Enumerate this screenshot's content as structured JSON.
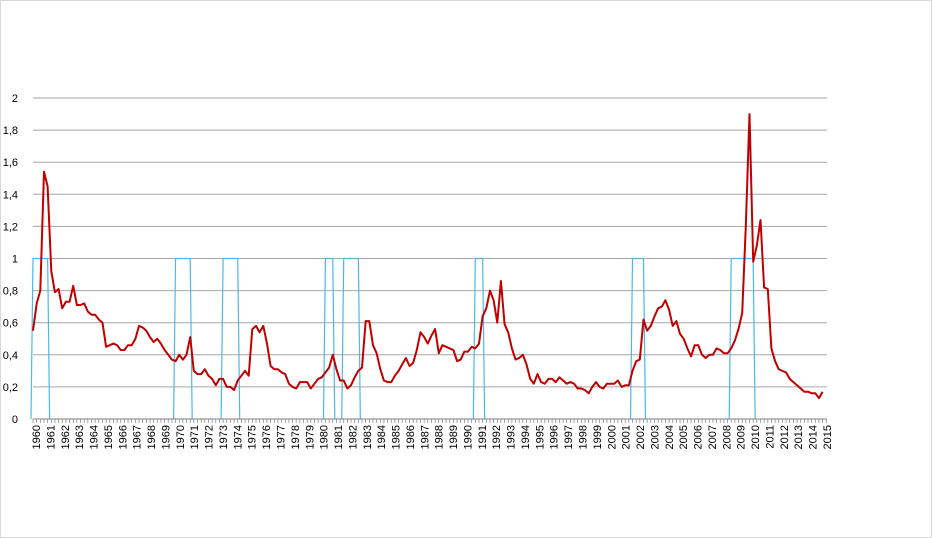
{
  "chart_data": {
    "type": "line",
    "title": "",
    "xlabel": "",
    "ylabel": "",
    "ylim": [
      0,
      2
    ],
    "y_ticks": [
      "0",
      "0,2",
      "0,4",
      "0,6",
      "0,8",
      "1",
      "1,2",
      "1,4",
      "1,6",
      "1,8",
      "2"
    ],
    "x_tick_labels": [
      "1960",
      "1961",
      "1962",
      "1963",
      "1964",
      "1965",
      "1966",
      "1967",
      "1968",
      "1969",
      "1970",
      "1971",
      "1972",
      "1973",
      "1974",
      "1975",
      "1976",
      "1977",
      "1978",
      "1979",
      "1980",
      "1981",
      "1982",
      "1983",
      "1984",
      "1985",
      "1986",
      "1987",
      "1988",
      "1989",
      "1990",
      "1991",
      "1992",
      "1993",
      "1994",
      "1995",
      "1996",
      "1997",
      "1998",
      "1999",
      "2000",
      "2001",
      "2002",
      "2003",
      "2004",
      "2005",
      "2006",
      "2007",
      "2008",
      "2009",
      "2010",
      "2011",
      "2012",
      "2013",
      "2014",
      "2015"
    ],
    "grid": true,
    "colors": {
      "main_series": "#c00000",
      "recession_series": "#4db8e8",
      "grid": "#a6a6a6",
      "axis": "#7f7f7f"
    },
    "series": [
      {
        "kind": "line",
        "color": "#c00000",
        "points": [
          [
            1960.0,
            0.55
          ],
          [
            1960.25,
            0.72
          ],
          [
            1960.5,
            0.8
          ],
          [
            1960.75,
            1.54
          ],
          [
            1961.0,
            1.45
          ],
          [
            1961.25,
            0.92
          ],
          [
            1961.5,
            0.79
          ],
          [
            1961.75,
            0.81
          ],
          [
            1962.0,
            0.69
          ],
          [
            1962.25,
            0.73
          ],
          [
            1962.5,
            0.73
          ],
          [
            1962.75,
            0.83
          ],
          [
            1963.0,
            0.71
          ],
          [
            1963.25,
            0.71
          ],
          [
            1963.5,
            0.72
          ],
          [
            1963.75,
            0.67
          ],
          [
            1964.0,
            0.65
          ],
          [
            1964.25,
            0.65
          ],
          [
            1964.5,
            0.62
          ],
          [
            1964.75,
            0.6
          ],
          [
            1965.0,
            0.45
          ],
          [
            1965.25,
            0.46
          ],
          [
            1965.5,
            0.47
          ],
          [
            1965.75,
            0.46
          ],
          [
            1966.0,
            0.43
          ],
          [
            1966.25,
            0.43
          ],
          [
            1966.5,
            0.46
          ],
          [
            1966.75,
            0.46
          ],
          [
            1967.0,
            0.5
          ],
          [
            1967.25,
            0.58
          ],
          [
            1967.5,
            0.57
          ],
          [
            1967.75,
            0.55
          ],
          [
            1968.0,
            0.51
          ],
          [
            1968.25,
            0.48
          ],
          [
            1968.5,
            0.5
          ],
          [
            1968.75,
            0.47
          ],
          [
            1969.0,
            0.43
          ],
          [
            1969.25,
            0.4
          ],
          [
            1969.5,
            0.37
          ],
          [
            1969.75,
            0.36
          ],
          [
            1970.0,
            0.4
          ],
          [
            1970.25,
            0.37
          ],
          [
            1970.5,
            0.4
          ],
          [
            1970.75,
            0.51
          ],
          [
            1971.0,
            0.3
          ],
          [
            1971.25,
            0.28
          ],
          [
            1971.5,
            0.28
          ],
          [
            1971.75,
            0.31
          ],
          [
            1972.0,
            0.27
          ],
          [
            1972.25,
            0.25
          ],
          [
            1972.5,
            0.21
          ],
          [
            1972.75,
            0.25
          ],
          [
            1973.0,
            0.25
          ],
          [
            1973.25,
            0.2
          ],
          [
            1973.5,
            0.2
          ],
          [
            1973.75,
            0.18
          ],
          [
            1974.0,
            0.24
          ],
          [
            1974.25,
            0.27
          ],
          [
            1974.5,
            0.3
          ],
          [
            1974.75,
            0.27
          ],
          [
            1975.0,
            0.56
          ],
          [
            1975.25,
            0.58
          ],
          [
            1975.5,
            0.54
          ],
          [
            1975.75,
            0.58
          ],
          [
            1976.0,
            0.47
          ],
          [
            1976.25,
            0.33
          ],
          [
            1976.5,
            0.31
          ],
          [
            1976.75,
            0.31
          ],
          [
            1977.0,
            0.29
          ],
          [
            1977.25,
            0.28
          ],
          [
            1977.5,
            0.22
          ],
          [
            1977.75,
            0.2
          ],
          [
            1978.0,
            0.19
          ],
          [
            1978.25,
            0.23
          ],
          [
            1978.5,
            0.23
          ],
          [
            1978.75,
            0.23
          ],
          [
            1979.0,
            0.19
          ],
          [
            1979.25,
            0.22
          ],
          [
            1979.5,
            0.25
          ],
          [
            1979.75,
            0.26
          ],
          [
            1980.0,
            0.29
          ],
          [
            1980.25,
            0.32
          ],
          [
            1980.5,
            0.4
          ],
          [
            1980.75,
            0.31
          ],
          [
            1981.0,
            0.24
          ],
          [
            1981.25,
            0.24
          ],
          [
            1981.5,
            0.19
          ],
          [
            1981.75,
            0.21
          ],
          [
            1982.0,
            0.26
          ],
          [
            1982.25,
            0.3
          ],
          [
            1982.5,
            0.32
          ],
          [
            1982.75,
            0.61
          ],
          [
            1983.0,
            0.61
          ],
          [
            1983.25,
            0.46
          ],
          [
            1983.5,
            0.41
          ],
          [
            1983.75,
            0.31
          ],
          [
            1984.0,
            0.24
          ],
          [
            1984.25,
            0.23
          ],
          [
            1984.5,
            0.23
          ],
          [
            1984.75,
            0.27
          ],
          [
            1985.0,
            0.3
          ],
          [
            1985.25,
            0.34
          ],
          [
            1985.5,
            0.38
          ],
          [
            1985.75,
            0.33
          ],
          [
            1986.0,
            0.35
          ],
          [
            1986.25,
            0.43
          ],
          [
            1986.5,
            0.54
          ],
          [
            1986.75,
            0.51
          ],
          [
            1987.0,
            0.47
          ],
          [
            1987.25,
            0.52
          ],
          [
            1987.5,
            0.56
          ],
          [
            1987.75,
            0.41
          ],
          [
            1988.0,
            0.46
          ],
          [
            1988.25,
            0.45
          ],
          [
            1988.5,
            0.44
          ],
          [
            1988.75,
            0.43
          ],
          [
            1989.0,
            0.36
          ],
          [
            1989.25,
            0.37
          ],
          [
            1989.5,
            0.42
          ],
          [
            1989.75,
            0.42
          ],
          [
            1990.0,
            0.45
          ],
          [
            1990.25,
            0.44
          ],
          [
            1990.5,
            0.47
          ],
          [
            1990.75,
            0.64
          ],
          [
            1991.0,
            0.69
          ],
          [
            1991.25,
            0.8
          ],
          [
            1991.5,
            0.74
          ],
          [
            1991.75,
            0.6
          ],
          [
            1992.0,
            0.86
          ],
          [
            1992.25,
            0.59
          ],
          [
            1992.5,
            0.54
          ],
          [
            1992.75,
            0.44
          ],
          [
            1993.0,
            0.37
          ],
          [
            1993.25,
            0.38
          ],
          [
            1993.5,
            0.4
          ],
          [
            1993.75,
            0.34
          ],
          [
            1994.0,
            0.25
          ],
          [
            1994.25,
            0.22
          ],
          [
            1994.5,
            0.28
          ],
          [
            1994.75,
            0.23
          ],
          [
            1995.0,
            0.22
          ],
          [
            1995.25,
            0.25
          ],
          [
            1995.5,
            0.25
          ],
          [
            1995.75,
            0.23
          ],
          [
            1996.0,
            0.26
          ],
          [
            1996.25,
            0.24
          ],
          [
            1996.5,
            0.22
          ],
          [
            1996.75,
            0.23
          ],
          [
            1997.0,
            0.22
          ],
          [
            1997.25,
            0.19
          ],
          [
            1997.5,
            0.19
          ],
          [
            1997.75,
            0.18
          ],
          [
            1998.0,
            0.16
          ],
          [
            1998.25,
            0.2
          ],
          [
            1998.5,
            0.23
          ],
          [
            1998.75,
            0.2
          ],
          [
            1999.0,
            0.19
          ],
          [
            1999.25,
            0.22
          ],
          [
            1999.5,
            0.22
          ],
          [
            1999.75,
            0.22
          ],
          [
            2000.0,
            0.24
          ],
          [
            2000.25,
            0.2
          ],
          [
            2000.5,
            0.21
          ],
          [
            2000.75,
            0.21
          ],
          [
            2001.0,
            0.3
          ],
          [
            2001.25,
            0.36
          ],
          [
            2001.5,
            0.37
          ],
          [
            2001.75,
            0.62
          ],
          [
            2002.0,
            0.55
          ],
          [
            2002.25,
            0.58
          ],
          [
            2002.5,
            0.64
          ],
          [
            2002.75,
            0.69
          ],
          [
            2003.0,
            0.7
          ],
          [
            2003.25,
            0.74
          ],
          [
            2003.5,
            0.68
          ],
          [
            2003.75,
            0.58
          ],
          [
            2004.0,
            0.61
          ],
          [
            2004.25,
            0.53
          ],
          [
            2004.5,
            0.5
          ],
          [
            2004.75,
            0.44
          ],
          [
            2005.0,
            0.39
          ],
          [
            2005.25,
            0.46
          ],
          [
            2005.5,
            0.46
          ],
          [
            2005.75,
            0.4
          ],
          [
            2006.0,
            0.38
          ],
          [
            2006.25,
            0.4
          ],
          [
            2006.5,
            0.4
          ],
          [
            2006.75,
            0.44
          ],
          [
            2007.0,
            0.43
          ],
          [
            2007.25,
            0.41
          ],
          [
            2007.5,
            0.41
          ],
          [
            2007.75,
            0.44
          ],
          [
            2008.0,
            0.49
          ],
          [
            2008.25,
            0.56
          ],
          [
            2008.5,
            0.66
          ],
          [
            2008.75,
            1.2
          ],
          [
            2009.0,
            1.9
          ],
          [
            2009.25,
            0.98
          ],
          [
            2009.5,
            1.08
          ],
          [
            2009.75,
            1.24
          ],
          [
            2010.0,
            0.82
          ],
          [
            2010.25,
            0.81
          ],
          [
            2010.5,
            0.44
          ],
          [
            2010.75,
            0.36
          ],
          [
            2011.0,
            0.31
          ],
          [
            2011.25,
            0.3
          ],
          [
            2011.5,
            0.29
          ],
          [
            2011.75,
            0.25
          ],
          [
            2012.0,
            0.23
          ],
          [
            2012.25,
            0.21
          ],
          [
            2012.5,
            0.19
          ],
          [
            2012.75,
            0.17
          ],
          [
            2013.0,
            0.17
          ],
          [
            2013.25,
            0.16
          ],
          [
            2013.5,
            0.16
          ],
          [
            2013.75,
            0.13
          ],
          [
            2014.0,
            0.17
          ]
        ]
      },
      {
        "kind": "indicator",
        "color": "#4db8e8",
        "values_note_free": true,
        "intervals": [
          [
            1960.0,
            1961.0
          ],
          [
            1969.75,
            1970.75
          ],
          [
            1973.0,
            1974.0
          ],
          [
            1980.0,
            1980.5
          ],
          [
            1981.25,
            1982.25
          ],
          [
            1990.25,
            1990.75
          ],
          [
            2001.0,
            2001.75
          ],
          [
            2007.75,
            2009.25
          ]
        ],
        "on_value": 1,
        "off_value": 0
      }
    ]
  }
}
